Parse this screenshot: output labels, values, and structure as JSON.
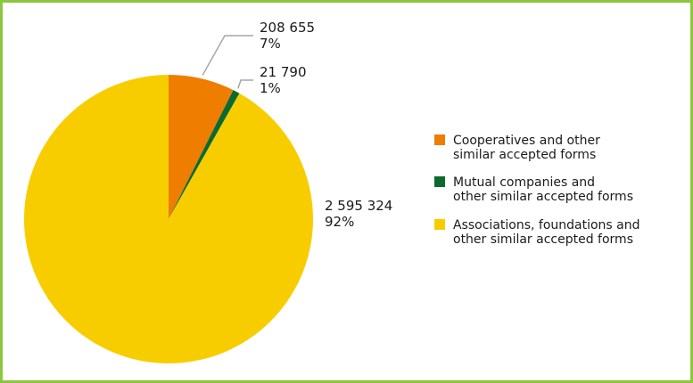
{
  "chart_data": {
    "type": "pie",
    "title": "",
    "slices": [
      {
        "name": "Cooperatives and other similar accepted forms",
        "legend_lines": [
          "Cooperatives and other",
          "similar accepted forms"
        ],
        "value": 208655,
        "value_label": "208 655",
        "percent_label": "7%",
        "color": "#ef7d00"
      },
      {
        "name": "Mutual companies and other similar accepted forms",
        "legend_lines": [
          "Mutual companies and",
          "other similar accepted forms"
        ],
        "value": 21790,
        "value_label": "21 790",
        "percent_label": "1%",
        "color": "#0b6b2e"
      },
      {
        "name": "Associations, foundations and other similar accepted forms",
        "legend_lines": [
          "Associations, foundations and",
          "other similar accepted forms"
        ],
        "value": 2595324,
        "value_label": "2 595 324",
        "percent_label": "92%",
        "color": "#f8cd00"
      }
    ],
    "legend_position": "right"
  },
  "colors": {
    "border": "#8cc63f",
    "leader": "#a6a6a6"
  }
}
